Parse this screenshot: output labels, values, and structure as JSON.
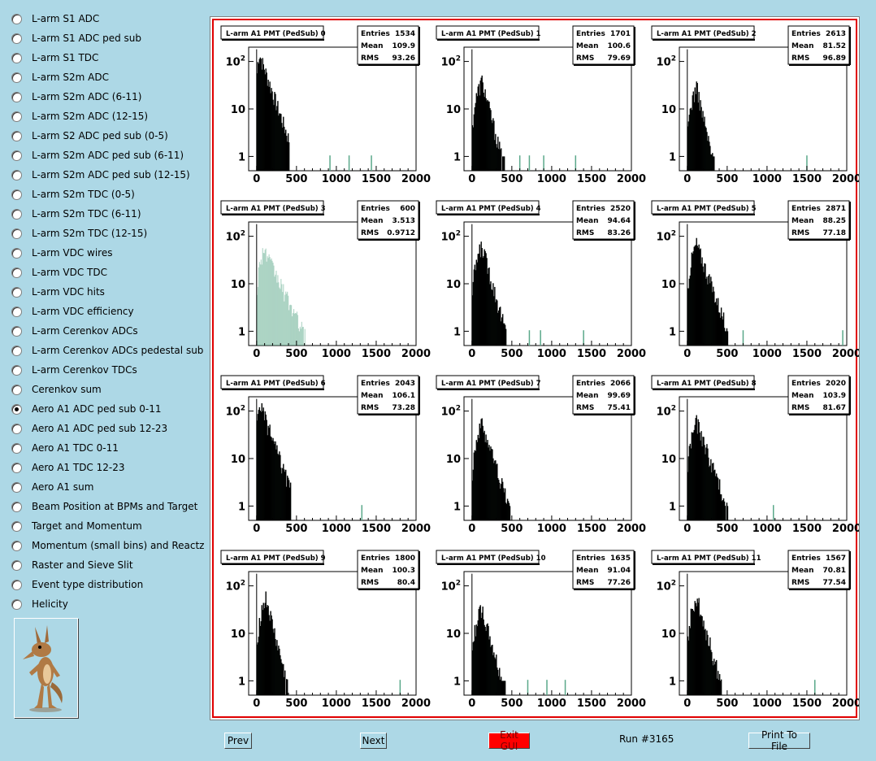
{
  "sidebar": {
    "items": [
      {
        "label": "L-arm S1 ADC",
        "checked": false
      },
      {
        "label": "L-arm S1 ADC ped sub",
        "checked": false
      },
      {
        "label": "L-arm S1 TDC",
        "checked": false
      },
      {
        "label": "L-arm S2m ADC",
        "checked": false
      },
      {
        "label": "L-arm S2m ADC (6-11)",
        "checked": false
      },
      {
        "label": "L-arm S2m ADC (12-15)",
        "checked": false
      },
      {
        "label": "L-arm S2 ADC ped sub (0-5)",
        "checked": false
      },
      {
        "label": "L-arm S2m ADC ped sub (6-11)",
        "checked": false
      },
      {
        "label": "L-arm S2m ADC ped sub (12-15)",
        "checked": false
      },
      {
        "label": "L-arm S2m TDC (0-5)",
        "checked": false
      },
      {
        "label": "L-arm S2m TDC (6-11)",
        "checked": false
      },
      {
        "label": "L-arm S2m TDC (12-15)",
        "checked": false
      },
      {
        "label": "L-arm VDC wires",
        "checked": false
      },
      {
        "label": "L-arm VDC TDC",
        "checked": false
      },
      {
        "label": "L-arm VDC hits",
        "checked": false
      },
      {
        "label": "L-arm VDC efficiency",
        "checked": false
      },
      {
        "label": "L-arm Cerenkov ADCs",
        "checked": false
      },
      {
        "label": "L-arm Cerenkov ADCs pedestal sub",
        "checked": false
      },
      {
        "label": "L-arm Cerenkov TDCs",
        "checked": false
      },
      {
        "label": "Cerenkov sum",
        "checked": false
      },
      {
        "label": "Aero A1 ADC ped sub 0-11",
        "checked": true
      },
      {
        "label": "Aero A1 ADC ped sub 12-23",
        "checked": false
      },
      {
        "label": "Aero A1 TDC 0-11",
        "checked": false
      },
      {
        "label": "Aero A1 TDC 12-23",
        "checked": false
      },
      {
        "label": "Aero A1 sum",
        "checked": false
      },
      {
        "label": "Beam Position at BPMs and Target",
        "checked": false
      },
      {
        "label": "Target and Momentum",
        "checked": false
      },
      {
        "label": "Momentum (small bins) and Reactz",
        "checked": false
      },
      {
        "label": "Raster and Sieve Slit",
        "checked": false
      },
      {
        "label": "Event type distribution",
        "checked": false
      },
      {
        "label": "Helicity",
        "checked": false
      }
    ],
    "logo_icon": "coyote-logo-icon"
  },
  "buttons": {
    "prev": "Prev",
    "next": "Next",
    "exit": "Exit GUI",
    "print": "Print To File"
  },
  "run_label": "Run #3165",
  "colors": {
    "background": "#add8e6",
    "frame_red": "#e00000",
    "hist_fill": "#5aa88a",
    "hist_line": "#000000",
    "exit_button": "#ff0000"
  },
  "chart_data": [
    {
      "type": "bar",
      "title": "L-arm A1 PMT (PedSub) 0",
      "stats": {
        "entries_label": "Entries",
        "entries": "1534",
        "mean_label": "Mean",
        "mean": "109.9",
        "rms_label": "RMS",
        "rms": "93.26"
      },
      "x_ticks": [
        "0",
        "500",
        "1000",
        "1500",
        "2000"
      ],
      "y_ticks": [
        "1",
        "10",
        "10^2"
      ],
      "xlim": [
        -100,
        2000
      ],
      "ylim": [
        0.5,
        200
      ],
      "y_scale": "log",
      "peak": {
        "x": 25,
        "y": 150
      },
      "tail_end": 400,
      "green_outliers": [
        920,
        1160,
        1440
      ]
    },
    {
      "type": "bar",
      "title": "L-arm A1 PMT (PedSub) 1",
      "stats": {
        "entries_label": "Entries",
        "entries": "1701",
        "mean_label": "Mean",
        "mean": "100.6",
        "rms_label": "RMS",
        "rms": "79.69"
      },
      "x_ticks": [
        "0",
        "500",
        "1000",
        "1500",
        "2000"
      ],
      "y_ticks": [
        "1",
        "10",
        "10^2"
      ],
      "xlim": [
        -100,
        2000
      ],
      "ylim": [
        0.5,
        200
      ],
      "y_scale": "log",
      "peak": {
        "x": 120,
        "y": 40
      },
      "tail_end": 400,
      "green_outliers": [
        600,
        720,
        900,
        1300
      ]
    },
    {
      "type": "bar",
      "title": "L-arm A1 PMT (PedSub) 2",
      "stats": {
        "entries_label": "Entries",
        "entries": "2613",
        "mean_label": "Mean",
        "mean": "81.52",
        "rms_label": "RMS",
        "rms": "96.89"
      },
      "x_ticks": [
        "0",
        "500",
        "1000",
        "1500",
        "2000"
      ],
      "y_ticks": [
        "1",
        "10",
        "10^2"
      ],
      "xlim": [
        -100,
        2000
      ],
      "ylim": [
        0.5,
        200
      ],
      "y_scale": "log",
      "peak": {
        "x": 110,
        "y": 30
      },
      "tail_end": 350,
      "green_outliers": [
        1500
      ]
    },
    {
      "type": "bar",
      "title": "L-arm A1 PMT (PedSub) 3",
      "stats": {
        "entries_label": "Entries",
        "entries": "600",
        "mean_label": "Mean",
        "mean": "3.513",
        "rms_label": "RMS",
        "rms": "0.9712"
      },
      "x_ticks": [
        "0",
        "500",
        "1000",
        "1500",
        "2000"
      ],
      "y_ticks": [
        "1",
        "10",
        "10^2"
      ],
      "xlim": [
        -100,
        2000
      ],
      "ylim": [
        0.5,
        200
      ],
      "y_scale": "log",
      "peak": {
        "x": 80,
        "y": 55
      },
      "tail_end": 600,
      "green_outliers": [],
      "all_green": true
    },
    {
      "type": "bar",
      "title": "L-arm A1 PMT (PedSub) 4",
      "stats": {
        "entries_label": "Entries",
        "entries": "2520",
        "mean_label": "Mean",
        "mean": "94.64",
        "rms_label": "RMS",
        "rms": "83.26"
      },
      "x_ticks": [
        "0",
        "500",
        "1000",
        "1500",
        "2000"
      ],
      "y_ticks": [
        "1",
        "10",
        "10^2"
      ],
      "xlim": [
        -100,
        2000
      ],
      "ylim": [
        0.5,
        200
      ],
      "y_scale": "log",
      "peak": {
        "x": 120,
        "y": 65
      },
      "tail_end": 420,
      "green_outliers": [
        720,
        860,
        1400
      ]
    },
    {
      "type": "bar",
      "title": "L-arm A1 PMT (PedSub) 5",
      "stats": {
        "entries_label": "Entries",
        "entries": "2871",
        "mean_label": "Mean",
        "mean": "88.25",
        "rms_label": "RMS",
        "rms": "77.18"
      },
      "x_ticks": [
        "0",
        "500",
        "1000",
        "1500",
        "2000"
      ],
      "y_ticks": [
        "1",
        "10",
        "10^2"
      ],
      "xlim": [
        -100,
        2000
      ],
      "ylim": [
        0.5,
        200
      ],
      "y_scale": "log",
      "peak": {
        "x": 110,
        "y": 70
      },
      "tail_end": 500,
      "green_outliers": [
        700,
        1950
      ]
    },
    {
      "type": "bar",
      "title": "L-arm A1 PMT (PedSub) 6",
      "stats": {
        "entries_label": "Entries",
        "entries": "2043",
        "mean_label": "Mean",
        "mean": "106.1",
        "rms_label": "RMS",
        "rms": "73.28"
      },
      "x_ticks": [
        "0",
        "500",
        "1000",
        "1500",
        "2000"
      ],
      "y_ticks": [
        "1",
        "10",
        "10^2"
      ],
      "xlim": [
        -100,
        2000
      ],
      "ylim": [
        0.5,
        200
      ],
      "y_scale": "log",
      "peak": {
        "x": 30,
        "y": 150
      },
      "tail_end": 420,
      "green_outliers": [
        1320
      ]
    },
    {
      "type": "bar",
      "title": "L-arm A1 PMT (PedSub) 7",
      "stats": {
        "entries_label": "Entries",
        "entries": "2066",
        "mean_label": "Mean",
        "mean": "99.69",
        "rms_label": "RMS",
        "rms": "75.41"
      },
      "x_ticks": [
        "0",
        "500",
        "1000",
        "1500",
        "2000"
      ],
      "y_ticks": [
        "1",
        "10",
        "10^2"
      ],
      "xlim": [
        -100,
        2000
      ],
      "ylim": [
        0.5,
        200
      ],
      "y_scale": "log",
      "peak": {
        "x": 120,
        "y": 55
      },
      "tail_end": 480,
      "green_outliers": []
    },
    {
      "type": "bar",
      "title": "L-arm A1 PMT (PedSub) 8",
      "stats": {
        "entries_label": "Entries",
        "entries": "2020",
        "mean_label": "Mean",
        "mean": "103.9",
        "rms_label": "RMS",
        "rms": "81.67"
      },
      "x_ticks": [
        "0",
        "500",
        "1000",
        "1500",
        "2000"
      ],
      "y_ticks": [
        "1",
        "10",
        "10^2"
      ],
      "xlim": [
        -100,
        2000
      ],
      "ylim": [
        0.5,
        200
      ],
      "y_scale": "log",
      "peak": {
        "x": 110,
        "y": 60
      },
      "tail_end": 500,
      "green_outliers": [
        1080
      ]
    },
    {
      "type": "bar",
      "title": "L-arm A1 PMT (PedSub) 9",
      "stats": {
        "entries_label": "Entries",
        "entries": "1800",
        "mean_label": "Mean",
        "mean": "100.3",
        "rms_label": "RMS",
        "rms": "80.4"
      },
      "x_ticks": [
        "0",
        "500",
        "1000",
        "1500",
        "2000"
      ],
      "y_ticks": [
        "1",
        "10",
        "10^2"
      ],
      "xlim": [
        -100,
        2000
      ],
      "ylim": [
        0.5,
        200
      ],
      "y_scale": "log",
      "peak": {
        "x": 110,
        "y": 55
      },
      "tail_end": 380,
      "green_outliers": [
        1800
      ]
    },
    {
      "type": "bar",
      "title": "L-arm A1 PMT (PedSub) 10",
      "stats": {
        "entries_label": "Entries",
        "entries": "1635",
        "mean_label": "Mean",
        "mean": "91.04",
        "rms_label": "RMS",
        "rms": "77.26"
      },
      "x_ticks": [
        "0",
        "500",
        "1000",
        "1500",
        "2000"
      ],
      "y_ticks": [
        "1",
        "10",
        "10^2"
      ],
      "xlim": [
        -100,
        2000
      ],
      "ylim": [
        0.5,
        200
      ],
      "y_scale": "log",
      "peak": {
        "x": 110,
        "y": 35
      },
      "tail_end": 420,
      "green_outliers": [
        700,
        940,
        1170
      ]
    },
    {
      "type": "bar",
      "title": "L-arm A1 PMT (PedSub) 11",
      "stats": {
        "entries_label": "Entries",
        "entries": "1567",
        "mean_label": "Mean",
        "mean": "70.81",
        "rms_label": "RMS",
        "rms": "77.54"
      },
      "x_ticks": [
        "0",
        "500",
        "1000",
        "1500",
        "2000"
      ],
      "y_ticks": [
        "1",
        "10",
        "10^2"
      ],
      "xlim": [
        -100,
        2000
      ],
      "ylim": [
        0.5,
        200
      ],
      "y_scale": "log",
      "peak": {
        "x": 110,
        "y": 60
      },
      "tail_end": 420,
      "green_outliers": [
        1600
      ]
    }
  ]
}
